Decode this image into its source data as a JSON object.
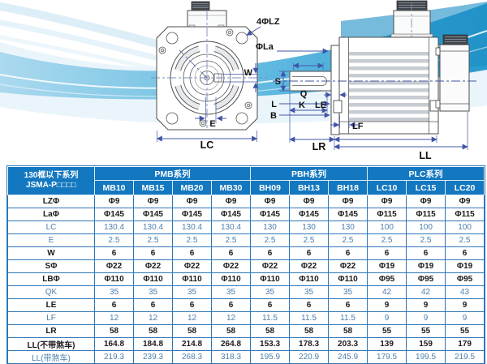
{
  "figure": {
    "labels": {
      "lz": "4ΦLZ",
      "la": "ΦLa",
      "w": "W",
      "e": "E",
      "lc": "LC",
      "s": "S",
      "q": "Q",
      "k": "K",
      "le": "LE",
      "l": "L",
      "b": "B",
      "lf": "LF",
      "lr": "LR",
      "ll": "LL"
    }
  },
  "table": {
    "title_line1": "130框以下系列",
    "title_line2": "JSMA-P□□□□",
    "groups": [
      {
        "name": "PMB系列",
        "span": 4
      },
      {
        "name": "PBH系列",
        "span": 3
      },
      {
        "name": "PLC系列",
        "span": 3
      }
    ],
    "models": [
      "MB10",
      "MB15",
      "MB20",
      "MB30",
      "BH09",
      "BH13",
      "BH18",
      "LC10",
      "LC15",
      "LC20"
    ],
    "rows": [
      {
        "label": "LZΦ",
        "muted": false,
        "values": [
          "Φ9",
          "Φ9",
          "Φ9",
          "Φ9",
          "Φ9",
          "Φ9",
          "Φ9",
          "Φ9",
          "Φ9",
          "Φ9"
        ]
      },
      {
        "label": "LaΦ",
        "muted": false,
        "values": [
          "Φ145",
          "Φ145",
          "Φ145",
          "Φ145",
          "Φ145",
          "Φ145",
          "Φ145",
          "Φ115",
          "Φ115",
          "Φ115"
        ]
      },
      {
        "label": "LC",
        "muted": true,
        "values": [
          "130.4",
          "130.4",
          "130.4",
          "130.4",
          "130",
          "130",
          "130",
          "100",
          "100",
          "100"
        ]
      },
      {
        "label": "E",
        "muted": true,
        "values": [
          "2.5",
          "2.5",
          "2.5",
          "2.5",
          "2.5",
          "2.5",
          "2.5",
          "2.5",
          "2.5",
          "2.5"
        ]
      },
      {
        "label": "W",
        "muted": false,
        "values": [
          "6",
          "6",
          "6",
          "6",
          "6",
          "6",
          "6",
          "6",
          "6",
          "6"
        ]
      },
      {
        "label": "SΦ",
        "muted": false,
        "values": [
          "Φ22",
          "Φ22",
          "Φ22",
          "Φ22",
          "Φ22",
          "Φ22",
          "Φ22",
          "Φ19",
          "Φ19",
          "Φ19"
        ]
      },
      {
        "label": "LBΦ",
        "muted": false,
        "values": [
          "Φ110",
          "Φ110",
          "Φ110",
          "Φ110",
          "Φ110",
          "Φ110",
          "Φ110",
          "Φ95",
          "Φ95",
          "Φ95"
        ]
      },
      {
        "label": "QK",
        "muted": true,
        "values": [
          "35",
          "35",
          "35",
          "35",
          "35",
          "35",
          "35",
          "42",
          "42",
          "43"
        ]
      },
      {
        "label": "LE",
        "muted": false,
        "values": [
          "6",
          "6",
          "6",
          "6",
          "6",
          "6",
          "6",
          "9",
          "9",
          "9"
        ]
      },
      {
        "label": "LF",
        "muted": true,
        "values": [
          "12",
          "12",
          "12",
          "12",
          "11.5",
          "11.5",
          "11.5",
          "9",
          "9",
          "9"
        ]
      },
      {
        "label": "LR",
        "muted": false,
        "values": [
          "58",
          "58",
          "58",
          "58",
          "58",
          "58",
          "58",
          "55",
          "55",
          "55"
        ]
      },
      {
        "label": "LL(不带煞车)",
        "muted": false,
        "values": [
          "164.8",
          "184.8",
          "214.8",
          "264.8",
          "153.3",
          "178.3",
          "203.3",
          "139",
          "159",
          "179"
        ]
      },
      {
        "label": "LL(带煞车)",
        "muted": true,
        "values": [
          "219.3",
          "239.3",
          "268.3",
          "318.3",
          "195.9",
          "220.9",
          "245.9",
          "179.5",
          "199.5",
          "219.5"
        ]
      }
    ]
  },
  "colors": {
    "header_bg": "#1478c0",
    "table_border": "#2f76b6",
    "dark_text": "#1b1b1b",
    "muted_text": "#4d7fae",
    "dimension_blue": "#4156a6",
    "wave_cyan": "#29a0d4"
  }
}
